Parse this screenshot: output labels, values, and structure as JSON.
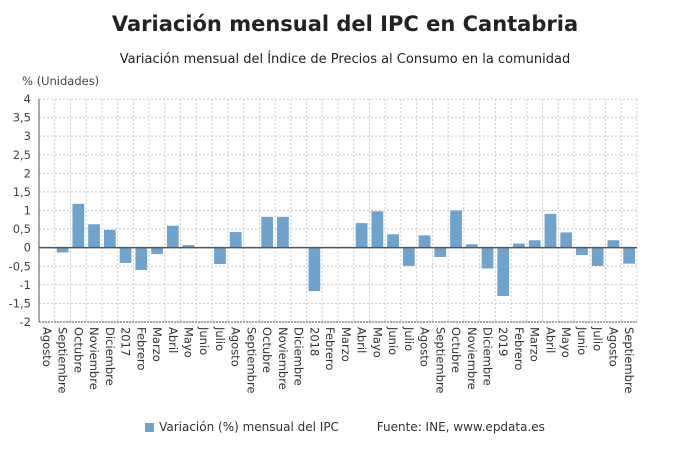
{
  "title": "Variación mensual del IPC en Cantabria",
  "subtitle": "Variación mensual del Índice de Precios al Consumo en la comunidad",
  "legend": {
    "series_label": "Variación (%) mensual del IPC",
    "source": "Fuente: INE, www.epdata.es"
  },
  "colors": {
    "bar": "#6fa3cc",
    "zero_line": "#555555",
    "grid": "#cccccc"
  },
  "chart_data": {
    "type": "bar",
    "ylabel": "% (Unidades)",
    "ylim": [
      -2,
      4
    ],
    "yticks": [
      "4",
      "3,5",
      "3",
      "2,5",
      "2",
      "1,5",
      "1",
      "0,5",
      "0",
      "-0,5",
      "-1",
      "-1,5",
      "-2"
    ],
    "grid": true,
    "legend_position": "bottom",
    "categories": [
      "Agosto",
      "Septiembre",
      "Octubre",
      "Noviembre",
      "Diciembre",
      "2017",
      "Febrero",
      "Marzo",
      "Abril",
      "Mayo",
      "Junio",
      "Julio",
      "Agosto",
      "Septiembre",
      "Octubre",
      "Noviembre",
      "Diciembre",
      "2018",
      "Febrero",
      "Marzo",
      "Abril",
      "Mayo",
      "Junio",
      "Julio",
      "Agosto",
      "Septiembre",
      "Octubre",
      "Noviembre",
      "Diciembre",
      "2019",
      "Febrero",
      "Marzo",
      "Abril",
      "Mayo",
      "Junio",
      "Julio",
      "Agosto",
      "Septiembre"
    ],
    "series": [
      {
        "name": "Variación (%) mensual del IPC",
        "values": [
          0,
          -0.13,
          1.18,
          0.63,
          0.48,
          -0.41,
          -0.6,
          -0.17,
          0.59,
          0.07,
          0,
          -0.44,
          0.42,
          -0.02,
          0.83,
          0.83,
          0.02,
          -1.17,
          0.02,
          0.02,
          0.66,
          0.98,
          0.36,
          -0.49,
          0.33,
          -0.25,
          1.0,
          0.09,
          -0.56,
          -1.3,
          0.11,
          0.2,
          0.91,
          0.41,
          -0.2,
          -0.49,
          0.2,
          -0.43
        ]
      }
    ]
  }
}
